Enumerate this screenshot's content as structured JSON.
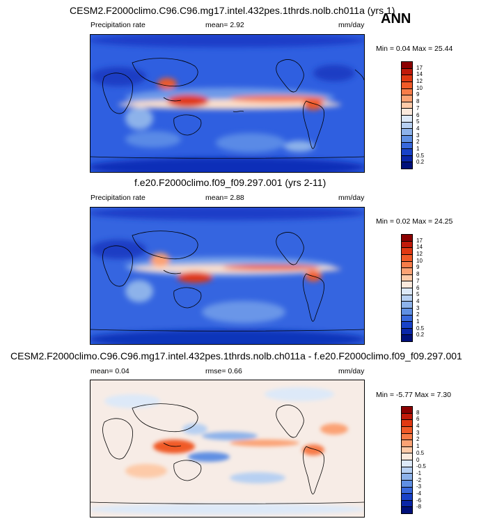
{
  "season": "ANN",
  "panels": [
    {
      "title": "CESM2.F2000climo.C96.C96.mg17.intel.432pes.1thrds.nolb.ch011a (yrs 1)",
      "left_label": "Precipitation rate",
      "mean_text": "mean=   2.92",
      "units": "mm/day",
      "minmax": "Min =   0.04 Max =  25.44",
      "colorbar_labels": [
        "17",
        "14",
        "12",
        "10",
        "9",
        "8",
        "7",
        "6",
        "5",
        "4",
        "3",
        "2",
        "1",
        "0.5",
        "0.2"
      ],
      "colorbar_colors": [
        "#8b0000",
        "#c01a0a",
        "#e03812",
        "#f05a28",
        "#f77c48",
        "#fba274",
        "#fdcaa8",
        "#fbe9dc",
        "#dde9f8",
        "#b7d0f2",
        "#8db2ea",
        "#5f8fe3",
        "#3868dc",
        "#1842c8",
        "#0a26a8",
        "#00107a"
      ]
    },
    {
      "title": "f.e20.F2000climo.f09_f09.297.001 (yrs 2-11)",
      "left_label": "Precipitation rate",
      "mean_text": "mean=   2.88",
      "units": "mm/day",
      "minmax": "Min =   0.02 Max =  24.25",
      "colorbar_labels": [
        "17",
        "14",
        "12",
        "10",
        "9",
        "8",
        "7",
        "6",
        "5",
        "4",
        "3",
        "2",
        "1",
        "0.5",
        "0.2"
      ],
      "colorbar_colors": [
        "#8b0000",
        "#c01a0a",
        "#e03812",
        "#f05a28",
        "#f77c48",
        "#fba274",
        "#fdcaa8",
        "#fbe9dc",
        "#dde9f8",
        "#b7d0f2",
        "#8db2ea",
        "#5f8fe3",
        "#3868dc",
        "#1842c8",
        "#0a26a8",
        "#00107a"
      ]
    },
    {
      "title": "CESM2.F2000climo.C96.C96.mg17.intel.432pes.1thrds.nolb.ch011a - f.e20.F2000climo.f09_f09.297.001",
      "left_label": "mean=   0.04",
      "mean_text": "rmse=   0.66",
      "units": "mm/day",
      "minmax": "Min =  -5.77 Max =   7.30",
      "colorbar_labels": [
        "8",
        "6",
        "4",
        "3",
        "2",
        "1",
        "0.5",
        "0",
        "-0.5",
        "-1",
        "-2",
        "-3",
        "-4",
        "-6",
        "-8"
      ],
      "colorbar_colors": [
        "#8b0000",
        "#c01a0a",
        "#e03812",
        "#f05a28",
        "#f77c48",
        "#fba274",
        "#fdcaa8",
        "#fbe9dc",
        "#dde9f8",
        "#b7d0f2",
        "#8db2ea",
        "#5f8fe3",
        "#3868dc",
        "#1842c8",
        "#0a26a8",
        "#00107a"
      ]
    }
  ]
}
